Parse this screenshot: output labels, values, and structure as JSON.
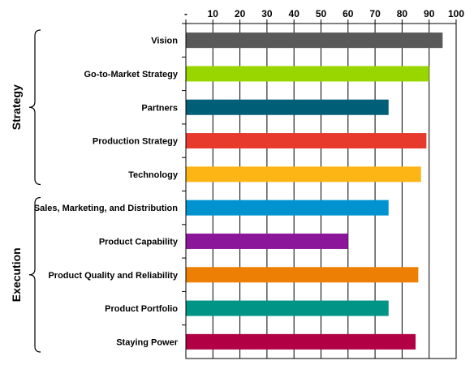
{
  "chart_data": {
    "type": "bar",
    "orientation": "horizontal",
    "xlim": [
      0,
      100
    ],
    "x_ticks": [
      "-",
      "10",
      "20",
      "30",
      "40",
      "50",
      "60",
      "70",
      "80",
      "90",
      "100"
    ],
    "x_axis_position": "top",
    "grid": true,
    "categories": [
      "Vision",
      "Go-to-Market Strategy",
      "Partners",
      "Production Strategy",
      "Technology",
      "Sales, Marketing, and Distribution",
      "Product Capability",
      "Product Quality and Reliability",
      "Product Portfolio",
      "Staying Power"
    ],
    "values": [
      95,
      90,
      75,
      89,
      87,
      75,
      60,
      86,
      75,
      85
    ],
    "colors": [
      "#595959",
      "#99d600",
      "#005f77",
      "#e83a2c",
      "#fdb515",
      "#0093cf",
      "#8b169a",
      "#ee7f05",
      "#009486",
      "#b20045"
    ],
    "groups": [
      {
        "label": "Strategy",
        "categories": [
          "Vision",
          "Go-to-Market Strategy",
          "Partners",
          "Production Strategy",
          "Technology"
        ]
      },
      {
        "label": "Execution",
        "categories": [
          "Sales, Marketing, and Distribution",
          "Product Capability",
          "Product Quality and Reliability",
          "Product Portfolio",
          "Staying Power"
        ]
      }
    ]
  }
}
